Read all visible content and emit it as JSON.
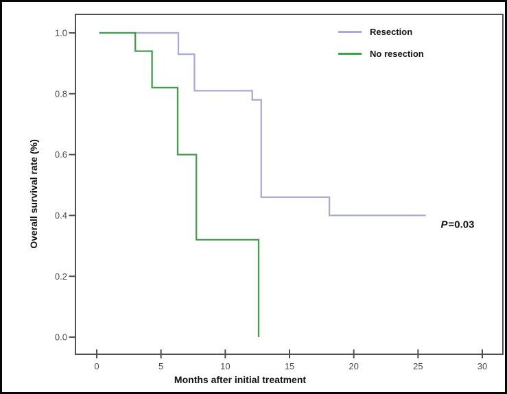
{
  "chart_data": {
    "type": "line",
    "subtype": "kaplan-meier-step-curves",
    "title": "",
    "xlabel": "Months after initial treatment",
    "ylabel": "Overall survival rate (%)",
    "xlim": [
      0,
      30
    ],
    "ylim": [
      0.0,
      1.0
    ],
    "x_ticks": [
      0,
      5,
      10,
      15,
      20,
      25,
      30
    ],
    "x_tick_labels": [
      "0",
      "5",
      "10",
      "15",
      "20",
      "25",
      "30"
    ],
    "y_ticks": [
      1.0,
      0.8,
      0.6,
      0.4,
      0.2,
      0.0
    ],
    "y_tick_labels": [
      "1.0",
      "0.8",
      "0.6",
      "0.4",
      "0.2",
      "0.0"
    ],
    "grid": false,
    "legend_position": "top-right-inside",
    "series": [
      {
        "name": "Resection",
        "color": "#a9abd4",
        "steps": [
          [
            0.2,
            1.0
          ],
          [
            6.35,
            0.93
          ],
          [
            7.6,
            0.81
          ],
          [
            12.1,
            0.78
          ],
          [
            12.8,
            0.46
          ],
          [
            18.1,
            0.4
          ],
          [
            25.6,
            0.4
          ]
        ]
      },
      {
        "name": "No resection",
        "color": "#42a04c",
        "steps": [
          [
            0.2,
            1.0
          ],
          [
            3.0,
            0.94
          ],
          [
            4.3,
            0.82
          ],
          [
            6.3,
            0.6
          ],
          [
            7.75,
            0.32
          ],
          [
            12.6,
            0.0
          ]
        ]
      }
    ],
    "annotations": [
      {
        "text": "P=0.03",
        "x_months": 28,
        "y_rate": 0.37
      }
    ]
  },
  "legend": {
    "items": [
      {
        "label": "Resection",
        "color": "#a9abd4"
      },
      {
        "label": "No resection",
        "color": "#42a04c"
      }
    ]
  },
  "annotation": {
    "symbol": "P",
    "rest": "=0.03"
  },
  "axes": {
    "frame_color": "#4f4f4f",
    "tick_text_color": "#4a4a4a"
  }
}
